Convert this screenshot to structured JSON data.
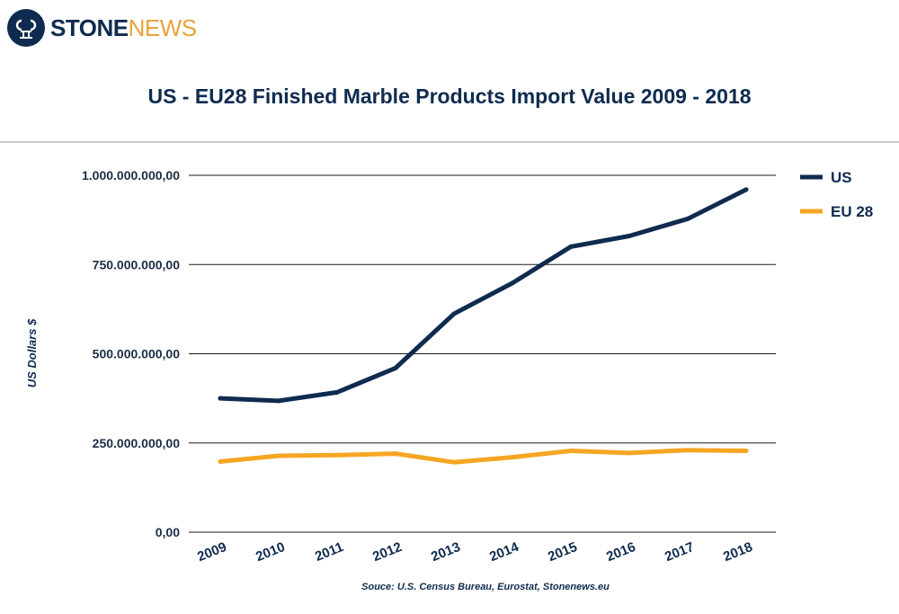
{
  "brand": {
    "name_part1": "STONE",
    "name_part2": "NEWS",
    "colors": {
      "navy": "#0f2b4f",
      "gold": "#e8a33a"
    }
  },
  "chart_data": {
    "type": "line",
    "title": "US - EU28 Finished Marble Products Import Value 2009 - 2018",
    "ylabel": "US Dollars $",
    "xlabel": "",
    "x": [
      "2009",
      "2010",
      "2011",
      "2012",
      "2013",
      "2014",
      "2015",
      "2016",
      "2017",
      "2018"
    ],
    "yticks": [
      0,
      250000000,
      500000000,
      750000000,
      1000000000
    ],
    "ytick_labels": [
      "0,00",
      "250.000.000,00",
      "500.000.000,00",
      "750.000.000,00",
      "1.000.000.000,00"
    ],
    "ylim": [
      0,
      1000000000
    ],
    "grid": "horizontal",
    "legend_position": "right",
    "series": [
      {
        "name": "US",
        "color": "#0f2b4f",
        "values": [
          375000000,
          368000000,
          392000000,
          460000000,
          612000000,
          698000000,
          800000000,
          830000000,
          878000000,
          960000000
        ]
      },
      {
        "name": "EU 28",
        "color": "#f5a623",
        "values": [
          198000000,
          214000000,
          216000000,
          220000000,
          196000000,
          210000000,
          228000000,
          222000000,
          230000000,
          228000000
        ]
      }
    ],
    "source": "Souce: U.S. Census Bureau, Eurostat, Stonenews.eu"
  }
}
